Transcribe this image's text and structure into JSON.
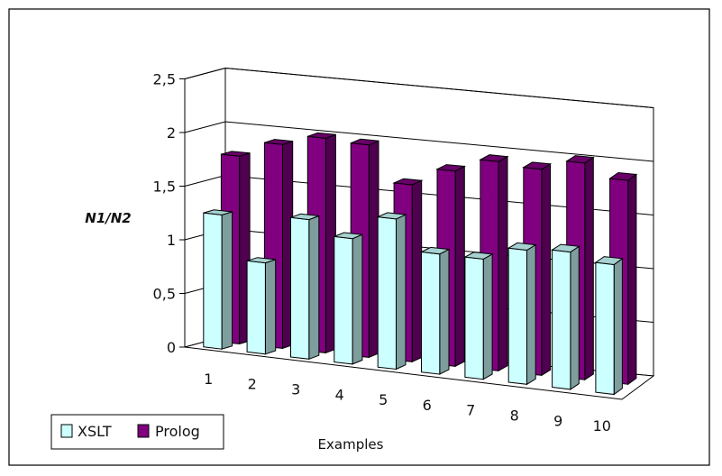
{
  "chart_data": {
    "type": "bar",
    "style": "3d-clustered-column",
    "title": "",
    "xlabel": "Examples",
    "ylabel": "N1/N2",
    "ylim": [
      0,
      2.5
    ],
    "yticks": [
      "0",
      "0,5",
      "1",
      "1,5",
      "2",
      "2,5"
    ],
    "categories": [
      "1",
      "2",
      "3",
      "4",
      "5",
      "6",
      "7",
      "8",
      "9",
      "10"
    ],
    "grid": true,
    "legend_position": "bottom-left",
    "series": [
      {
        "name": "XSLT",
        "color": "#ccffff",
        "values": [
          1.25,
          0.85,
          1.3,
          1.17,
          1.4,
          1.12,
          1.12,
          1.25,
          1.28,
          1.21
        ]
      },
      {
        "name": "Prolog",
        "color": "#800080",
        "values": [
          1.75,
          1.9,
          2.0,
          1.98,
          1.65,
          1.82,
          1.95,
          1.92,
          2.02,
          1.9
        ]
      }
    ]
  }
}
